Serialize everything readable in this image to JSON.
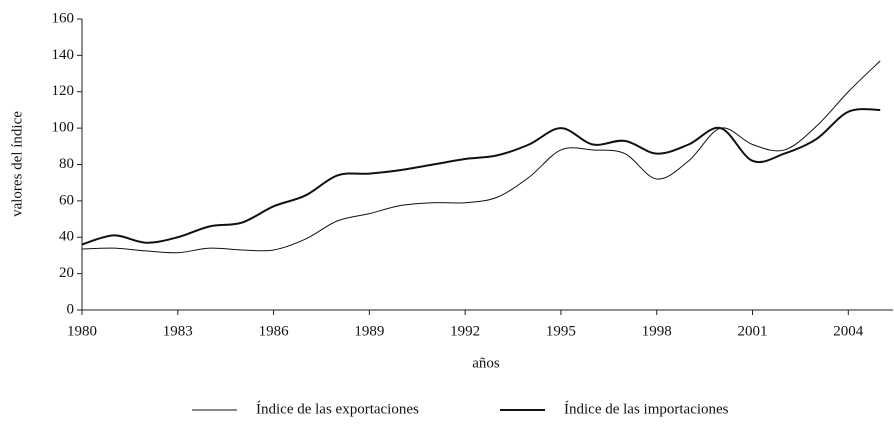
{
  "chart_data": {
    "type": "line",
    "x_label": "años",
    "y_label": "valores del índice",
    "x": [
      1980,
      1981,
      1982,
      1983,
      1984,
      1985,
      1986,
      1987,
      1988,
      1989,
      1990,
      1991,
      1992,
      1993,
      1994,
      1995,
      1996,
      1997,
      1998,
      1999,
      2000,
      2001,
      2002,
      2003,
      2004,
      2005
    ],
    "series": [
      {
        "name": "Índice de las exportaciones",
        "color": "#111111",
        "width": 1,
        "values": [
          33.5,
          34,
          32.5,
          31.5,
          34,
          33,
          33,
          39,
          49,
          53,
          57.5,
          59,
          59,
          62,
          73,
          88,
          88,
          86,
          72,
          82,
          100,
          91,
          88,
          101,
          120,
          137
        ]
      },
      {
        "name": "Índice de las importaciones",
        "color": "#111111",
        "width": 2,
        "values": [
          36,
          41,
          37,
          40,
          46,
          48,
          57,
          63,
          74,
          75,
          77,
          80,
          83,
          85,
          91,
          100,
          91,
          93,
          86,
          91,
          100,
          82,
          86,
          94,
          109,
          110
        ]
      }
    ],
    "xlim": [
      1980,
      2005.4
    ],
    "xticks": [
      1980,
      1983,
      1986,
      1989,
      1992,
      1995,
      1998,
      2001,
      2004
    ],
    "ylim": [
      0,
      160
    ],
    "yticks": [
      0,
      20,
      40,
      60,
      80,
      100,
      120,
      140,
      160
    ],
    "legend": "bottom"
  }
}
